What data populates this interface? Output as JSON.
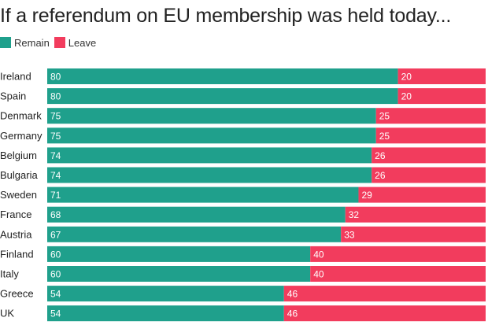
{
  "chart_data": {
    "type": "bar",
    "orientation": "horizontal",
    "stacked": true,
    "title": "If a referendum on EU membership was held today...",
    "categories": [
      "Ireland",
      "Spain",
      "Denmark",
      "Germany",
      "Belgium",
      "Bulgaria",
      "Sweden",
      "France",
      "Austria",
      "Finland",
      "Italy",
      "Greece",
      "UK"
    ],
    "series": [
      {
        "name": "Remain",
        "color": "#1fa08c",
        "values": [
          80,
          80,
          75,
          75,
          74,
          74,
          71,
          68,
          67,
          60,
          60,
          54,
          54
        ]
      },
      {
        "name": "Leave",
        "color": "#f23c5d",
        "values": [
          20,
          20,
          25,
          25,
          26,
          26,
          29,
          32,
          33,
          40,
          40,
          46,
          46
        ]
      }
    ],
    "xlim": [
      0,
      100
    ],
    "legend_position": "top-left",
    "grid": false
  }
}
